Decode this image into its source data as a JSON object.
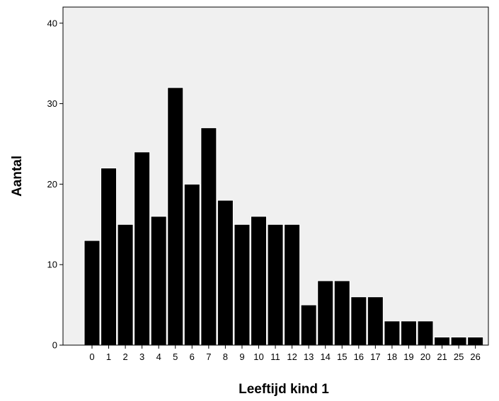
{
  "chart_data": {
    "type": "bar",
    "title": "",
    "xlabel": "Leeftijd kind 1",
    "ylabel": "Aantal",
    "categories": [
      "0",
      "1",
      "2",
      "3",
      "4",
      "5",
      "6",
      "7",
      "8",
      "9",
      "10",
      "11",
      "12",
      "13",
      "14",
      "15",
      "16",
      "17",
      "18",
      "19",
      "20",
      "21",
      "25",
      "26"
    ],
    "values": [
      13,
      22,
      15,
      24,
      16,
      32,
      20,
      27,
      18,
      15,
      16,
      15,
      15,
      5,
      8,
      8,
      6,
      6,
      3,
      3,
      3,
      1,
      1,
      1
    ],
    "ylim": [
      0,
      42
    ],
    "yticks": [
      0,
      10,
      20,
      30,
      40
    ],
    "grid": false,
    "legend": "none",
    "colors": {
      "plot_background": "#f0f0f0",
      "bar_fill": "#000000",
      "bar_stroke": "#ffffff"
    }
  }
}
